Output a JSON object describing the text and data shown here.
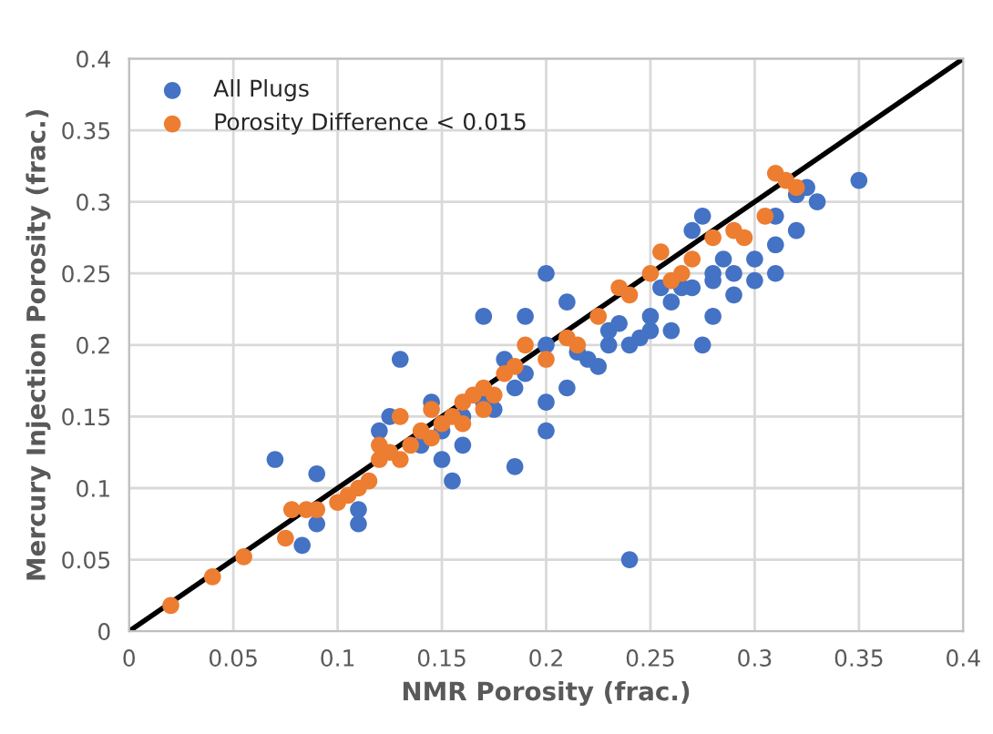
{
  "chart_data": {
    "type": "scatter",
    "xlabel": "NMR Porosity (frac.)",
    "ylabel": "Mercury Injection Porosity (frac.)",
    "xlim": [
      0,
      0.4
    ],
    "ylim": [
      0,
      0.4
    ],
    "xticks": [
      0,
      0.05,
      0.1,
      0.15,
      0.2,
      0.25,
      0.3,
      0.35,
      0.4
    ],
    "yticks": [
      0,
      0.05,
      0.1,
      0.15,
      0.2,
      0.25,
      0.3,
      0.35,
      0.4
    ],
    "grid": true,
    "legend": "top left",
    "series": [
      {
        "name": "All Plugs",
        "color": "#4472c4",
        "marker": "circle",
        "x": [
          0.07,
          0.09,
          0.09,
          0.083,
          0.11,
          0.11,
          0.13,
          0.12,
          0.125,
          0.14,
          0.15,
          0.155,
          0.16,
          0.17,
          0.175,
          0.185,
          0.185,
          0.19,
          0.2,
          0.2,
          0.2,
          0.21,
          0.21,
          0.22,
          0.23,
          0.23,
          0.24,
          0.24,
          0.25,
          0.25,
          0.26,
          0.26,
          0.27,
          0.27,
          0.275,
          0.275,
          0.28,
          0.28,
          0.29,
          0.3,
          0.31,
          0.31,
          0.32,
          0.325,
          0.33,
          0.35,
          0.16,
          0.145,
          0.15,
          0.17,
          0.18,
          0.19,
          0.215,
          0.235,
          0.245,
          0.255,
          0.265,
          0.285,
          0.29,
          0.3,
          0.31,
          0.32,
          0.2,
          0.225,
          0.28
        ],
        "values": [
          0.12,
          0.11,
          0.075,
          0.06,
          0.075,
          0.085,
          0.19,
          0.14,
          0.15,
          0.13,
          0.12,
          0.105,
          0.13,
          0.22,
          0.155,
          0.17,
          0.115,
          0.22,
          0.25,
          0.16,
          0.14,
          0.23,
          0.17,
          0.19,
          0.2,
          0.21,
          0.05,
          0.2,
          0.21,
          0.22,
          0.21,
          0.23,
          0.24,
          0.28,
          0.29,
          0.2,
          0.25,
          0.22,
          0.25,
          0.26,
          0.25,
          0.27,
          0.28,
          0.31,
          0.3,
          0.315,
          0.15,
          0.16,
          0.14,
          0.16,
          0.19,
          0.18,
          0.195,
          0.215,
          0.205,
          0.24,
          0.24,
          0.26,
          0.235,
          0.245,
          0.29,
          0.305,
          0.2,
          0.185,
          0.245
        ]
      },
      {
        "name": "Porosity Difference < 0.015",
        "color": "#ed7d31",
        "marker": "circle",
        "x": [
          0.02,
          0.04,
          0.055,
          0.075,
          0.078,
          0.085,
          0.09,
          0.1,
          0.105,
          0.11,
          0.115,
          0.12,
          0.125,
          0.13,
          0.135,
          0.14,
          0.145,
          0.15,
          0.155,
          0.16,
          0.165,
          0.17,
          0.175,
          0.18,
          0.185,
          0.19,
          0.21,
          0.215,
          0.225,
          0.24,
          0.25,
          0.255,
          0.26,
          0.27,
          0.28,
          0.29,
          0.295,
          0.305,
          0.31,
          0.315,
          0.32,
          0.13,
          0.12,
          0.145,
          0.16,
          0.17,
          0.2,
          0.235,
          0.265
        ],
        "values": [
          0.018,
          0.038,
          0.052,
          0.065,
          0.085,
          0.085,
          0.085,
          0.09,
          0.095,
          0.1,
          0.105,
          0.12,
          0.125,
          0.12,
          0.13,
          0.14,
          0.135,
          0.145,
          0.15,
          0.16,
          0.165,
          0.17,
          0.165,
          0.18,
          0.185,
          0.2,
          0.205,
          0.2,
          0.22,
          0.235,
          0.25,
          0.265,
          0.245,
          0.26,
          0.275,
          0.28,
          0.275,
          0.29,
          0.32,
          0.315,
          0.31,
          0.15,
          0.13,
          0.155,
          0.145,
          0.155,
          0.19,
          0.24,
          0.25
        ]
      },
      {
        "type": "line",
        "color": "#000000",
        "x": [
          0,
          0.4
        ],
        "values": [
          0,
          0.4
        ]
      }
    ]
  }
}
